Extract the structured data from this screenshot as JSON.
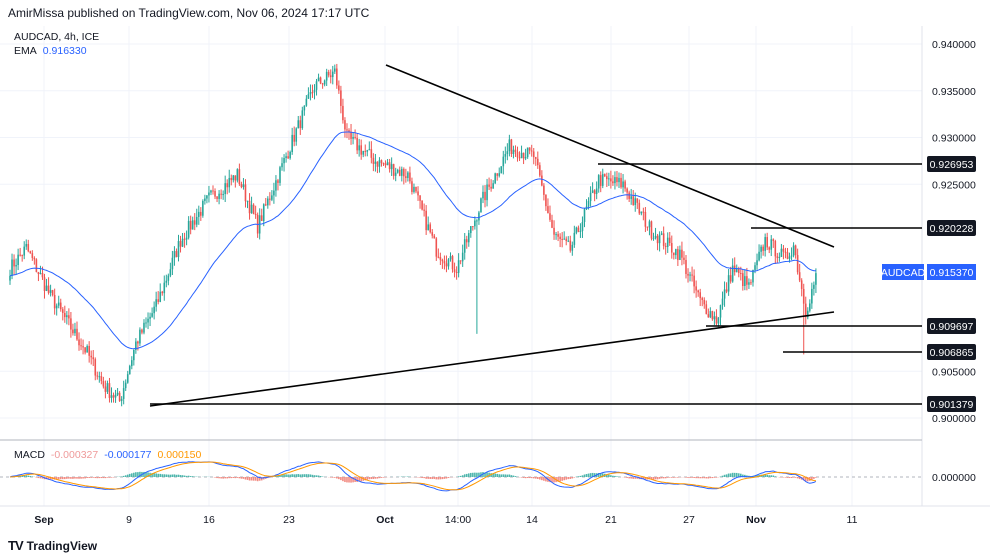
{
  "header": {
    "publisher_line": "AmirMissa published on TradingView.com, Nov 06, 2024 17:17 UTC"
  },
  "symbol": {
    "title": "AUDCAD, 4h, ICE",
    "ema_label": "EMA",
    "ema_value": "0.916330"
  },
  "macd_legend": {
    "label": "MACD",
    "v1": "-0.000327",
    "v2": "-0.000177",
    "v3": "0.000150"
  },
  "brand": {
    "logo_text": "TV",
    "name": "TradingView"
  },
  "colors": {
    "up": "#26a69a",
    "down": "#ef5350",
    "ema": "#2962ff",
    "macd_line": "#2962ff",
    "signal_line": "#ff9800",
    "trendline": "#000000"
  },
  "chart_data": [
    {
      "type": "candlestick",
      "title": "AUDCAD, 4h, ICE",
      "ylim": [
        0.8975,
        0.9415
      ],
      "y_ticks": [
        "0.940000",
        "0.935000",
        "0.930000",
        "0.925000",
        "0.905000",
        "0.900000"
      ],
      "x_ticks": [
        "Sep",
        "9",
        "16",
        "23",
        "Oct",
        "14:00",
        "14",
        "21",
        "27",
        "Nov",
        "11"
      ],
      "price_labels": [
        "0.926953",
        "0.920228",
        "0.909697",
        "0.906865",
        "0.901379"
      ],
      "last_price": {
        "symbol": "AUDCAD",
        "value": "0.915370"
      },
      "ohlc_anchors": [
        {
          "t": 0,
          "close": 0.916
        },
        {
          "t": 8,
          "close": 0.9182
        },
        {
          "t": 20,
          "close": 0.913
        },
        {
          "t": 38,
          "close": 0.907
        },
        {
          "t": 46,
          "close": 0.9035
        },
        {
          "t": 54,
          "close": 0.9018
        },
        {
          "t": 62,
          "close": 0.908
        },
        {
          "t": 72,
          "close": 0.912
        },
        {
          "t": 84,
          "close": 0.919
        },
        {
          "t": 98,
          "close": 0.9235
        },
        {
          "t": 112,
          "close": 0.926
        },
        {
          "t": 122,
          "close": 0.9205
        },
        {
          "t": 136,
          "close": 0.928
        },
        {
          "t": 150,
          "close": 0.9355
        },
        {
          "t": 160,
          "close": 0.937
        },
        {
          "t": 166,
          "close": 0.93
        },
        {
          "t": 180,
          "close": 0.9275
        },
        {
          "t": 196,
          "close": 0.926
        },
        {
          "t": 210,
          "close": 0.918
        },
        {
          "t": 220,
          "close": 0.916
        },
        {
          "t": 232,
          "close": 0.923
        },
        {
          "t": 246,
          "close": 0.929
        },
        {
          "t": 258,
          "close": 0.928
        },
        {
          "t": 268,
          "close": 0.9195
        },
        {
          "t": 276,
          "close": 0.918
        },
        {
          "t": 290,
          "close": 0.9255
        },
        {
          "t": 302,
          "close": 0.925
        },
        {
          "t": 316,
          "close": 0.92
        },
        {
          "t": 330,
          "close": 0.9175
        },
        {
          "t": 340,
          "close": 0.9125
        },
        {
          "t": 348,
          "close": 0.9105
        },
        {
          "t": 356,
          "close": 0.916
        },
        {
          "t": 364,
          "close": 0.914
        },
        {
          "t": 372,
          "close": 0.919
        },
        {
          "t": 382,
          "close": 0.917
        },
        {
          "t": 386,
          "close": 0.9185
        },
        {
          "t": 392,
          "close": 0.9115
        },
        {
          "t": 397,
          "close": 0.915
        }
      ],
      "series": [
        {
          "name": "EMA",
          "value_last": 0.91633
        }
      ]
    },
    {
      "type": "macd",
      "title": "MACD",
      "y_ticks": [
        "0.000000"
      ],
      "values": {
        "macd": -0.000327,
        "signal": -0.000177,
        "histogram": 0.00015
      }
    }
  ]
}
